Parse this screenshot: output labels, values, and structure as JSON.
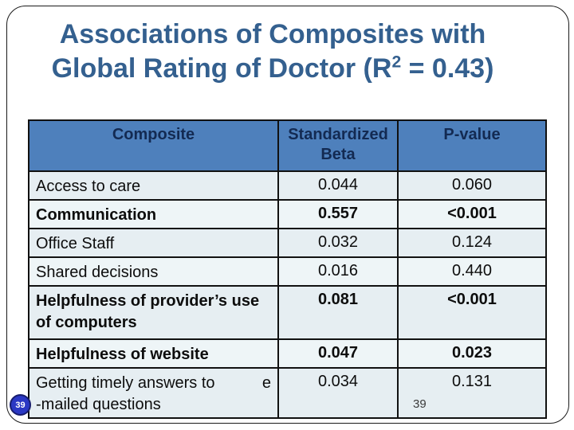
{
  "slide": {
    "title": {
      "line1": "Associations of Composites with",
      "line2_pre": "Global Rating of Doctor (R",
      "line2_sup": "2",
      "line2_post": " = 0.43)"
    },
    "badge_number": "39",
    "page_number": "39"
  },
  "colors": {
    "title_text": "#34608f",
    "table_header_bg": "#4e80bc",
    "table_header_text": "#132a52",
    "row_band_dark": "#e6eef2",
    "row_band_light": "#eef5f7",
    "border": "#111111",
    "badge_bg": "#2b38c4"
  },
  "table": {
    "headers": {
      "composite": "Composite",
      "beta": "Standardized Beta",
      "p": "P-value"
    },
    "rows": [
      {
        "label": "Access to care",
        "beta": "0.044",
        "p": "0.060",
        "bold": false
      },
      {
        "label": "Communication",
        "beta": "0.557",
        "p": "<0.001",
        "bold": true
      },
      {
        "label": "Office Staff",
        "beta": "0.032",
        "p": "0.124",
        "bold": false
      },
      {
        "label": "Shared decisions",
        "beta": "0.016",
        "p": "0.440",
        "bold": false
      },
      {
        "label_line1": "Helpfulness of provider’s use",
        "label_line2": "of computers",
        "beta": "0.081",
        "p": "<0.001",
        "bold": true
      },
      {
        "label": "Helpfulness of website",
        "beta": "0.047",
        "p": "0.023",
        "bold": true
      },
      {
        "label_line1_left": "Getting timely answers to",
        "label_line1_right": "e",
        "label_line2": "-mailed questions",
        "beta": "0.034",
        "p": "0.131",
        "bold": false
      }
    ]
  }
}
